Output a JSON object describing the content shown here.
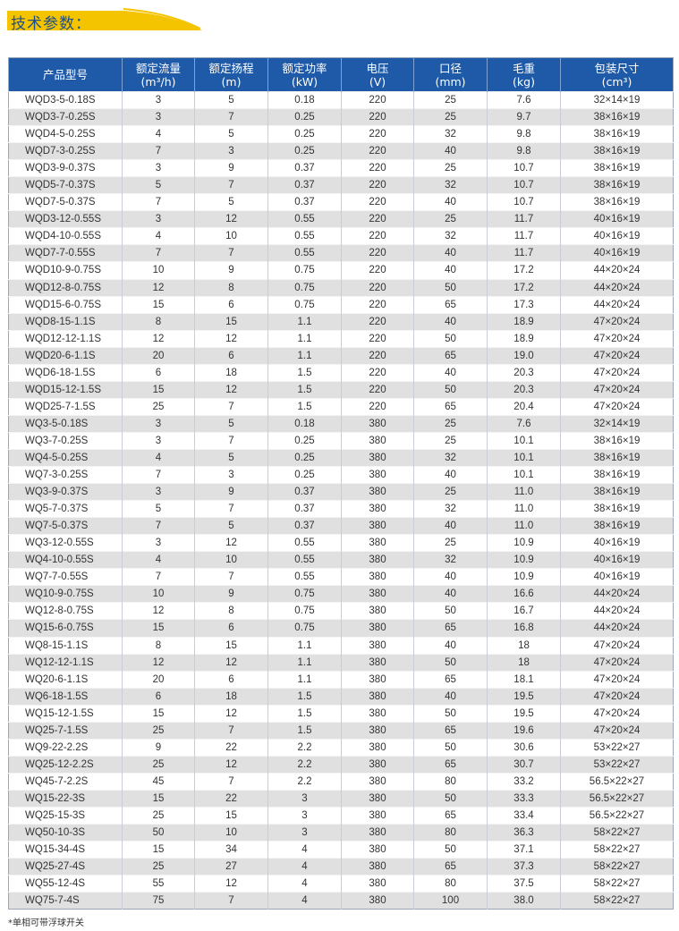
{
  "title": "技术参数：",
  "colors": {
    "header_bg": "#1e5aa8",
    "title_band": "#f5c400",
    "title_text": "#1d4f8e",
    "row_alt": "#e0e0e0"
  },
  "columns": [
    {
      "label": "产品型号",
      "unit": ""
    },
    {
      "label": "额定流量",
      "unit": "(m³/h)"
    },
    {
      "label": "额定扬程",
      "unit": "(m)"
    },
    {
      "label": "额定功率",
      "unit": "(kW)"
    },
    {
      "label": "电压",
      "unit": "(V)"
    },
    {
      "label": "口径",
      "unit": "(mm)"
    },
    {
      "label": "毛重",
      "unit": "(kg)"
    },
    {
      "label": "包装尺寸",
      "unit": "(cm³)"
    }
  ],
  "rows": [
    [
      "WQD3-5-0.18S",
      "3",
      "5",
      "0.18",
      "220",
      "25",
      "7.6",
      "32×14×19"
    ],
    [
      "WQD3-7-0.25S",
      "3",
      "7",
      "0.25",
      "220",
      "25",
      "9.7",
      "38×16×19"
    ],
    [
      "WQD4-5-0.25S",
      "4",
      "5",
      "0.25",
      "220",
      "32",
      "9.8",
      "38×16×19"
    ],
    [
      "WQD7-3-0.25S",
      "7",
      "3",
      "0.25",
      "220",
      "40",
      "9.8",
      "38×16×19"
    ],
    [
      "WQD3-9-0.37S",
      "3",
      "9",
      "0.37",
      "220",
      "25",
      "10.7",
      "38×16×19"
    ],
    [
      "WQD5-7-0.37S",
      "5",
      "7",
      "0.37",
      "220",
      "32",
      "10.7",
      "38×16×19"
    ],
    [
      "WQD7-5-0.37S",
      "7",
      "5",
      "0.37",
      "220",
      "40",
      "10.7",
      "38×16×19"
    ],
    [
      "WQD3-12-0.55S",
      "3",
      "12",
      "0.55",
      "220",
      "25",
      "11.7",
      "40×16×19"
    ],
    [
      "WQD4-10-0.55S",
      "4",
      "10",
      "0.55",
      "220",
      "32",
      "11.7",
      "40×16×19"
    ],
    [
      "WQD7-7-0.55S",
      "7",
      "7",
      "0.55",
      "220",
      "40",
      "11.7",
      "40×16×19"
    ],
    [
      "WQD10-9-0.75S",
      "10",
      "9",
      "0.75",
      "220",
      "40",
      "17.2",
      "44×20×24"
    ],
    [
      "WQD12-8-0.75S",
      "12",
      "8",
      "0.75",
      "220",
      "50",
      "17.2",
      "44×20×24"
    ],
    [
      "WQD15-6-0.75S",
      "15",
      "6",
      "0.75",
      "220",
      "65",
      "17.3",
      "44×20×24"
    ],
    [
      "WQD8-15-1.1S",
      "8",
      "15",
      "1.1",
      "220",
      "40",
      "18.9",
      "47×20×24"
    ],
    [
      "WQD12-12-1.1S",
      "12",
      "12",
      "1.1",
      "220",
      "50",
      "18.9",
      "47×20×24"
    ],
    [
      "WQD20-6-1.1S",
      "20",
      "6",
      "1.1",
      "220",
      "65",
      "19.0",
      "47×20×24"
    ],
    [
      "WQD6-18-1.5S",
      "6",
      "18",
      "1.5",
      "220",
      "40",
      "20.3",
      "47×20×24"
    ],
    [
      "WQD15-12-1.5S",
      "15",
      "12",
      "1.5",
      "220",
      "50",
      "20.3",
      "47×20×24"
    ],
    [
      "WQD25-7-1.5S",
      "25",
      "7",
      "1.5",
      "220",
      "65",
      "20.4",
      "47×20×24"
    ],
    [
      "WQ3-5-0.18S",
      "3",
      "5",
      "0.18",
      "380",
      "25",
      "7.6",
      "32×14×19"
    ],
    [
      "WQ3-7-0.25S",
      "3",
      "7",
      "0.25",
      "380",
      "25",
      "10.1",
      "38×16×19"
    ],
    [
      "WQ4-5-0.25S",
      "4",
      "5",
      "0.25",
      "380",
      "32",
      "10.1",
      "38×16×19"
    ],
    [
      "WQ7-3-0.25S",
      "7",
      "3",
      "0.25",
      "380",
      "40",
      "10.1",
      "38×16×19"
    ],
    [
      "WQ3-9-0.37S",
      "3",
      "9",
      "0.37",
      "380",
      "25",
      "11.0",
      "38×16×19"
    ],
    [
      "WQ5-7-0.37S",
      "5",
      "7",
      "0.37",
      "380",
      "32",
      "11.0",
      "38×16×19"
    ],
    [
      "WQ7-5-0.37S",
      "7",
      "5",
      "0.37",
      "380",
      "40",
      "11.0",
      "38×16×19"
    ],
    [
      "WQ3-12-0.55S",
      "3",
      "12",
      "0.55",
      "380",
      "25",
      "10.9",
      "40×16×19"
    ],
    [
      "WQ4-10-0.55S",
      "4",
      "10",
      "0.55",
      "380",
      "32",
      "10.9",
      "40×16×19"
    ],
    [
      "WQ7-7-0.55S",
      "7",
      "7",
      "0.55",
      "380",
      "40",
      "10.9",
      "40×16×19"
    ],
    [
      "WQ10-9-0.75S",
      "10",
      "9",
      "0.75",
      "380",
      "40",
      "16.6",
      "44×20×24"
    ],
    [
      "WQ12-8-0.75S",
      "12",
      "8",
      "0.75",
      "380",
      "50",
      "16.7",
      "44×20×24"
    ],
    [
      "WQ15-6-0.75S",
      "15",
      "6",
      "0.75",
      "380",
      "65",
      "16.8",
      "44×20×24"
    ],
    [
      "WQ8-15-1.1S",
      "8",
      "15",
      "1.1",
      "380",
      "40",
      "18",
      "47×20×24"
    ],
    [
      "WQ12-12-1.1S",
      "12",
      "12",
      "1.1",
      "380",
      "50",
      "18",
      "47×20×24"
    ],
    [
      "WQ20-6-1.1S",
      "20",
      "6",
      "1.1",
      "380",
      "65",
      "18.1",
      "47×20×24"
    ],
    [
      "WQ6-18-1.5S",
      "6",
      "18",
      "1.5",
      "380",
      "40",
      "19.5",
      "47×20×24"
    ],
    [
      "WQ15-12-1.5S",
      "15",
      "12",
      "1.5",
      "380",
      "50",
      "19.5",
      "47×20×24"
    ],
    [
      "WQ25-7-1.5S",
      "25",
      "7",
      "1.5",
      "380",
      "65",
      "19.6",
      "47×20×24"
    ],
    [
      "WQ9-22-2.2S",
      "9",
      "22",
      "2.2",
      "380",
      "50",
      "30.6",
      "53×22×27"
    ],
    [
      "WQ25-12-2.2S",
      "25",
      "12",
      "2.2",
      "380",
      "65",
      "30.7",
      "53×22×27"
    ],
    [
      "WQ45-7-2.2S",
      "45",
      "7",
      "2.2",
      "380",
      "80",
      "33.2",
      "56.5×22×27"
    ],
    [
      "WQ15-22-3S",
      "15",
      "22",
      "3",
      "380",
      "50",
      "33.3",
      "56.5×22×27"
    ],
    [
      "WQ25-15-3S",
      "25",
      "15",
      "3",
      "380",
      "65",
      "33.4",
      "56.5×22×27"
    ],
    [
      "WQ50-10-3S",
      "50",
      "10",
      "3",
      "380",
      "80",
      "36.3",
      "58×22×27"
    ],
    [
      "WQ15-34-4S",
      "15",
      "34",
      "4",
      "380",
      "50",
      "37.1",
      "58×22×27"
    ],
    [
      "WQ25-27-4S",
      "25",
      "27",
      "4",
      "380",
      "65",
      "37.3",
      "58×22×27"
    ],
    [
      "WQ55-12-4S",
      "55",
      "12",
      "4",
      "380",
      "80",
      "37.5",
      "58×22×27"
    ],
    [
      "WQ75-7-4S",
      "75",
      "7",
      "4",
      "380",
      "100",
      "38.0",
      "58×22×27"
    ]
  ],
  "footnote": "*单相可带浮球开关"
}
